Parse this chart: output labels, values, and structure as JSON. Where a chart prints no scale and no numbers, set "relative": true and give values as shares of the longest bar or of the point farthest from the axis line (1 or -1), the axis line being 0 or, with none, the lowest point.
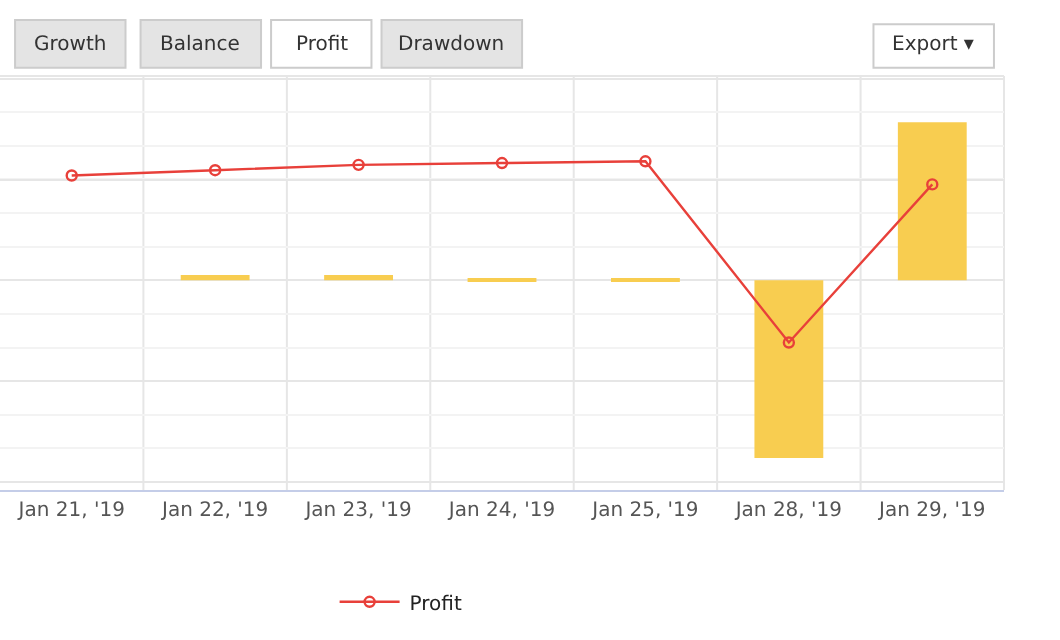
{
  "chart_data": {
    "type": "bar",
    "relative": true,
    "categories": [
      "Jan 21, '19",
      "Jan 22, '19",
      "Jan 23, '19",
      "Jan 24, '19",
      "Jan 25, '19",
      "Jan 28, '19",
      "Jan 29, '19"
    ],
    "series": [
      {
        "color": "#f8cd50",
        "values": [
          null,
          0.03,
          0.03,
          0.01,
          0.01,
          -1,
          0.89
        ]
      },
      {
        "type": "line",
        "name": "Profit",
        "color": "#e8403a",
        "values": [
          0.59,
          0.62,
          0.65,
          0.66,
          0.67,
          -0.35,
          0.54
        ]
      }
    ],
    "marker": "circle",
    "line_style": "solid",
    "grid": true,
    "legend": "bottom",
    "annotations": [
      "Growth",
      "Balance",
      "Profit",
      "Drawdown",
      "Export ▾"
    ]
  }
}
